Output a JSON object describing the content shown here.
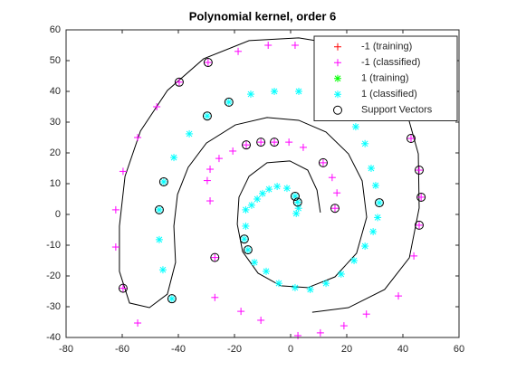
{
  "chart_data": {
    "type": "scatter",
    "title": "Polynomial kernel, order 6",
    "xlim": [
      -80,
      60
    ],
    "ylim": [
      -40,
      60
    ],
    "xticks": [
      -80,
      -60,
      -40,
      -20,
      0,
      20,
      40,
      60
    ],
    "yticks": [
      -40,
      -30,
      -20,
      -10,
      0,
      10,
      20,
      30,
      40,
      50,
      60
    ],
    "legend": "top-right",
    "series": [
      {
        "name": "-1 (training)",
        "color": "#ff0000",
        "marker": "+",
        "x": [],
        "values": []
      },
      {
        "name": "-1 (classified)",
        "color": "#ff00ff",
        "marker": "+",
        "x": [
          -8,
          1.6,
          -18.7,
          -29.4,
          -39.7,
          -47.7,
          -54.5,
          -59.7,
          -62.3,
          -62.3,
          -59.7,
          -54.5,
          11,
          20.6,
          29.4,
          37.7,
          42.9,
          45.8,
          46.5,
          45.8,
          43.9,
          38.4,
          27,
          19,
          10.6,
          2.6,
          -10.6,
          -17.7,
          -27,
          15.8,
          16.5,
          14.8,
          11.6,
          4.5,
          -0.6,
          -5.8,
          -10.6,
          -15.8,
          -20.6,
          -25.5,
          -28.7,
          -29.7,
          -28.7,
          -27
        ],
        "values": [
          55,
          55,
          53,
          49.4,
          43,
          35,
          25,
          14,
          1.5,
          -10.6,
          -24,
          -35.3,
          53.5,
          50,
          43,
          34.4,
          24.7,
          14.4,
          5.6,
          -3.5,
          -13.5,
          -26.5,
          -32.4,
          -36.2,
          -38.5,
          -39.4,
          -34.4,
          -31.5,
          -27,
          2,
          7,
          12,
          16.8,
          21.8,
          23.5,
          23.5,
          23.5,
          22.6,
          20.6,
          18.2,
          14.7,
          11,
          4.4,
          -14
        ]
      },
      {
        "name": "1 (training)",
        "color": "#00ff00",
        "marker": "*",
        "x": [],
        "values": []
      },
      {
        "name": "1 (classified)",
        "color": "#00ffff",
        "marker": "*",
        "x": [
          1.6,
          2.5,
          2,
          2.8,
          -1.3,
          -4.8,
          -7.7,
          -10,
          -11.9,
          -13.9,
          -16,
          -16,
          -16.5,
          -15.2,
          -12.9,
          -8.7,
          -4.2,
          1.6,
          7,
          12.6,
          18,
          22.6,
          26.5,
          29.4,
          31,
          31.6,
          30.3,
          28.7,
          26.5,
          23.2,
          17.7,
          11,
          2.9,
          -5.8,
          -14.2,
          -22,
          -29.7,
          -36.1,
          -41.6,
          -45.2,
          -46.8,
          -46.8,
          -45.5,
          -42.3
        ],
        "values": [
          5.9,
          4,
          0.3,
          2,
          8.5,
          9.1,
          8.2,
          6.8,
          5,
          3,
          1.5,
          -3.8,
          -8,
          -11.5,
          -15.6,
          -18.5,
          -22.4,
          -23.8,
          -24.4,
          -22.4,
          -19.4,
          -15,
          -10.3,
          -5.6,
          -1,
          3.8,
          9.4,
          15,
          23,
          28.5,
          33.8,
          38,
          40,
          40,
          39.1,
          36.5,
          32,
          26.2,
          18.5,
          10.6,
          1.5,
          -8.2,
          -18,
          -27.4
        ]
      },
      {
        "name": "Support Vectors",
        "color": "#000000",
        "marker": "o",
        "x": [
          -29.4,
          -39.7,
          -59.7,
          42.9,
          45.8,
          46.5,
          45.8,
          15.8,
          11.6,
          -5.8,
          -10.6,
          -15.8,
          -27,
          1.6,
          2.5,
          -16.5,
          -15.2,
          31.6,
          -22,
          -29.7,
          -45.2,
          -46.8,
          -42.3
        ],
        "values": [
          49.4,
          43,
          -24,
          24.7,
          14.4,
          5.6,
          -3.5,
          2,
          16.8,
          23.5,
          23.5,
          22.6,
          -14,
          5.9,
          4,
          -8,
          -11.5,
          3.8,
          36.5,
          32,
          10.6,
          1.5,
          -27.4
        ]
      }
    ],
    "boundary": {
      "color": "#000000",
      "x": [
        10.6,
        9.4,
        6.1,
        -0.3,
        -8.4,
        -14.8,
        -18.4,
        -19,
        -17.1,
        -11.6,
        -3.5,
        6.1,
        15.8,
        23.5,
        27.1,
        25.5,
        20.6,
        12.6,
        2.9,
        -8.4,
        -19.7,
        -30,
        -36.5,
        -40.3,
        -41.6,
        -41,
        -43.9,
        -50.3,
        -57.4,
        -61,
        -61,
        -59,
        -53.5,
        -43.9,
        -31,
        -14.8,
        2.9,
        19,
        31.9,
        41,
        45.5,
        45.8,
        42.3,
        33.5,
        20.6,
        7.7
      ],
      "values": [
        0.6,
        7.9,
        14.4,
        17.4,
        16.8,
        12.4,
        5.6,
        -3.2,
        -12.1,
        -19.1,
        -23.2,
        -23.8,
        -20.3,
        -12.6,
        -0.9,
        10.9,
        19.7,
        26.8,
        30.6,
        31.5,
        29.1,
        23.2,
        15.3,
        6.5,
        -3.8,
        -15.6,
        -25.9,
        -30.3,
        -28.8,
        -18.5,
        -3.8,
        12.4,
        27.1,
        40.3,
        50.6,
        56.5,
        57.4,
        55,
        47.6,
        34.4,
        19.7,
        2.1,
        -14.1,
        -24.4,
        -30.3,
        -31.8
      ]
    }
  }
}
